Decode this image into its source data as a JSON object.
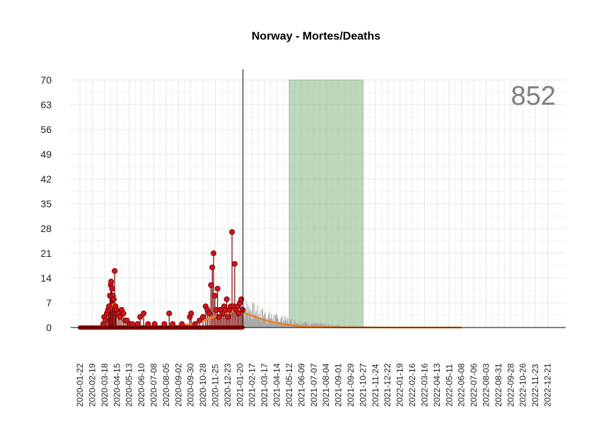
{
  "chart_data": {
    "type": "line",
    "title": "Norway - Mortes/Deaths",
    "xlabel": "",
    "ylabel": "",
    "total_label": "852",
    "ylim": [
      0,
      70
    ],
    "xlim": [
      "2020-01-01",
      "2023-01-31"
    ],
    "grid": true,
    "legend": "none",
    "yticks": [
      0,
      7,
      14,
      21,
      28,
      35,
      42,
      49,
      56,
      63,
      70
    ],
    "xtick_labels": [
      "2020-01-22",
      "2020-02-19",
      "2020-03-18",
      "2020-04-15",
      "2020-05-13",
      "2020-06-10",
      "2020-07-08",
      "2020-08-05",
      "2020-09-02",
      "2020-09-30",
      "2020-10-28",
      "2020-11-25",
      "2020-12-23",
      "2021-01-20",
      "2021-02-17",
      "2021-03-17",
      "2021-04-14",
      "2021-05-12",
      "2021-06-09",
      "2021-07-07",
      "2021-08-04",
      "2021-09-01",
      "2021-09-29",
      "2021-10-27",
      "2021-11-24",
      "2021-12-22",
      "2022-01-19",
      "2022-02-16",
      "2022-03-16",
      "2022-04-13",
      "2022-05-11",
      "2022-06-08",
      "2022-07-06",
      "2022-08-03",
      "2022-08-31",
      "2022-09-28",
      "2022-10-26",
      "2022-11-23",
      "2022-12-21"
    ],
    "cutoff_date": "2021-01-27",
    "shaded_region": {
      "start": "2021-05-12",
      "end": "2021-10-27",
      "color": "#8fbc8f"
    },
    "colors": {
      "observed": "#c8161d",
      "observed_stem": "#7a0000",
      "forecast": "#aaaaaa",
      "fit": "#ef7f1a",
      "grid": "#e6e6e6"
    },
    "series": [
      {
        "kind": "observed",
        "points": [
          [
            "2020-03-15",
            1
          ],
          [
            "2020-03-17",
            3
          ],
          [
            "2020-03-20",
            2
          ],
          [
            "2020-03-23",
            4
          ],
          [
            "2020-03-26",
            5
          ],
          [
            "2020-03-28",
            6
          ],
          [
            "2020-03-30",
            9
          ],
          [
            "2020-04-01",
            12
          ],
          [
            "2020-04-02",
            13
          ],
          [
            "2020-04-04",
            11
          ],
          [
            "2020-04-06",
            9
          ],
          [
            "2020-04-08",
            8
          ],
          [
            "2020-04-10",
            16
          ],
          [
            "2020-04-12",
            6
          ],
          [
            "2020-04-14",
            5
          ],
          [
            "2020-04-18",
            4
          ],
          [
            "2020-04-22",
            3
          ],
          [
            "2020-04-26",
            5
          ],
          [
            "2020-04-30",
            4
          ],
          [
            "2020-05-04",
            2
          ],
          [
            "2020-05-08",
            2
          ],
          [
            "2020-05-14",
            1
          ],
          [
            "2020-05-20",
            1
          ],
          [
            "2020-06-01",
            1
          ],
          [
            "2020-06-07",
            3
          ],
          [
            "2020-06-15",
            4
          ],
          [
            "2020-06-25",
            1
          ],
          [
            "2020-07-10",
            1
          ],
          [
            "2020-08-01",
            1
          ],
          [
            "2020-08-12",
            4
          ],
          [
            "2020-08-20",
            1
          ],
          [
            "2020-09-10",
            1
          ],
          [
            "2020-09-28",
            3
          ],
          [
            "2020-10-01",
            4
          ],
          [
            "2020-10-10",
            1
          ],
          [
            "2020-10-20",
            2
          ],
          [
            "2020-10-28",
            3
          ],
          [
            "2020-11-03",
            6
          ],
          [
            "2020-11-07",
            5
          ],
          [
            "2020-11-11",
            4
          ],
          [
            "2020-11-15",
            12
          ],
          [
            "2020-11-18",
            17
          ],
          [
            "2020-11-21",
            21
          ],
          [
            "2020-11-24",
            9
          ],
          [
            "2020-11-27",
            5
          ],
          [
            "2020-11-30",
            11
          ],
          [
            "2020-12-03",
            3
          ],
          [
            "2020-12-06",
            5
          ],
          [
            "2020-12-09",
            5
          ],
          [
            "2020-12-12",
            4
          ],
          [
            "2020-12-15",
            6
          ],
          [
            "2020-12-18",
            5
          ],
          [
            "2020-12-21",
            8
          ],
          [
            "2020-12-24",
            3
          ],
          [
            "2020-12-27",
            5
          ],
          [
            "2020-12-30",
            6
          ],
          [
            "2021-01-02",
            27
          ],
          [
            "2021-01-05",
            6
          ],
          [
            "2021-01-08",
            18
          ],
          [
            "2021-01-11",
            5
          ],
          [
            "2021-01-14",
            6
          ],
          [
            "2021-01-17",
            4
          ],
          [
            "2021-01-20",
            7
          ],
          [
            "2021-01-23",
            8
          ],
          [
            "2021-01-26",
            5
          ]
        ]
      },
      {
        "kind": "fit",
        "points": [
          [
            "2020-01-22",
            0
          ],
          [
            "2020-03-05",
            0
          ],
          [
            "2020-03-15",
            1
          ],
          [
            "2020-03-25",
            3.5
          ],
          [
            "2020-04-05",
            6.5
          ],
          [
            "2020-04-12",
            6.8
          ],
          [
            "2020-04-20",
            5
          ],
          [
            "2020-05-01",
            2.5
          ],
          [
            "2020-05-15",
            1
          ],
          [
            "2020-06-01",
            0.5
          ],
          [
            "2020-07-01",
            0.3
          ],
          [
            "2020-08-01",
            0.3
          ],
          [
            "2020-09-01",
            0.5
          ],
          [
            "2020-10-01",
            1
          ],
          [
            "2020-11-01",
            2
          ],
          [
            "2020-12-01",
            3.5
          ],
          [
            "2021-01-01",
            4.5
          ],
          [
            "2021-01-20",
            4.6
          ],
          [
            "2021-02-10",
            3.6
          ],
          [
            "2021-03-15",
            2.2
          ],
          [
            "2021-04-15",
            1.2
          ],
          [
            "2021-05-15",
            0.7
          ],
          [
            "2021-06-15",
            0.3
          ],
          [
            "2021-08-01",
            0.1
          ],
          [
            "2021-10-01",
            0.04
          ],
          [
            "2022-01-01",
            0.01
          ],
          [
            "2022-06-08",
            0
          ]
        ]
      }
    ]
  }
}
